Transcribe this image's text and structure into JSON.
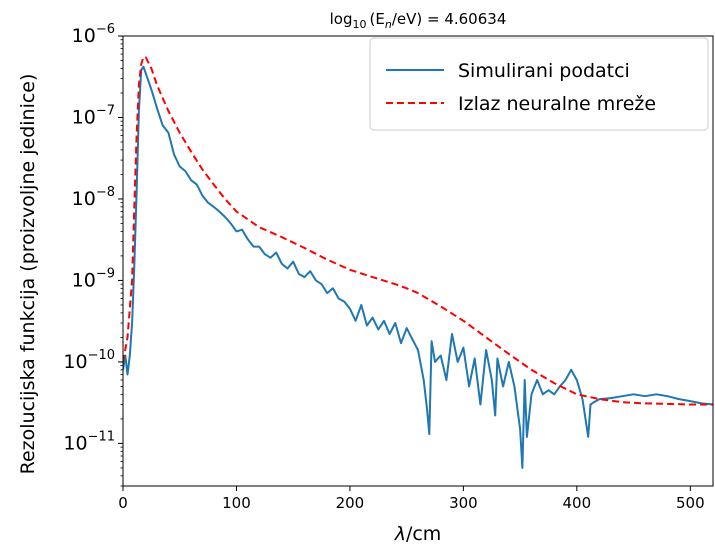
{
  "chart_data": {
    "type": "line",
    "title": {
      "prefix": "log",
      "subscript": "10",
      "middle": "(E",
      "subscript2": "n",
      "suffix": "/eV) = 4.60634"
    },
    "xlabel": {
      "symbol": "λ",
      "unit": "/cm"
    },
    "ylabel": "Rezolucijska funkcija (proizvoljne jedinice)",
    "xlim": [
      0,
      520
    ],
    "ylim": [
      3e-12,
      1e-06
    ],
    "yscale": "log",
    "x_ticks": [
      0,
      100,
      200,
      300,
      400,
      500
    ],
    "y_ticks": [
      {
        "base": "10",
        "exp": "−6",
        "value": 1e-06
      },
      {
        "base": "10",
        "exp": "−7",
        "value": 1e-07
      },
      {
        "base": "10",
        "exp": "−8",
        "value": 1e-08
      },
      {
        "base": "10",
        "exp": "−9",
        "value": 1e-09
      },
      {
        "base": "10",
        "exp": "−10",
        "value": 1e-10
      },
      {
        "base": "10",
        "exp": "−11",
        "value": 1e-11
      }
    ],
    "grid": false,
    "legend_position": "top-right",
    "series": [
      {
        "name": "Simulirani podatci",
        "color": "#1f77b4",
        "style": "solid",
        "x": [
          0,
          2,
          4,
          6,
          8,
          10,
          12,
          14,
          16,
          18,
          20,
          25,
          30,
          35,
          40,
          45,
          50,
          55,
          60,
          65,
          70,
          75,
          80,
          85,
          90,
          95,
          100,
          105,
          110,
          115,
          120,
          125,
          130,
          135,
          140,
          145,
          150,
          155,
          160,
          165,
          170,
          175,
          180,
          185,
          190,
          195,
          200,
          205,
          210,
          215,
          220,
          225,
          230,
          235,
          240,
          245,
          250,
          255,
          260,
          265,
          268,
          270,
          272,
          275,
          280,
          285,
          290,
          295,
          300,
          305,
          310,
          315,
          320,
          325,
          328,
          330,
          332,
          335,
          340,
          345,
          350,
          352,
          354,
          356,
          360,
          365,
          370,
          375,
          380,
          385,
          390,
          395,
          400,
          405,
          410,
          412,
          415,
          420,
          430,
          440,
          450,
          460,
          470,
          480,
          490,
          500,
          510,
          520
        ],
        "y": [
          8e-11,
          1.2e-10,
          7e-11,
          1.2e-10,
          3e-10,
          1.5e-09,
          1.2e-08,
          1.2e-07,
          3.8e-07,
          4.2e-07,
          3.5e-07,
          2.2e-07,
          1.3e-07,
          8e-08,
          6.5e-08,
          3.5e-08,
          2.5e-08,
          2.2e-08,
          1.7e-08,
          1.5e-08,
          1.1e-08,
          9e-09,
          8e-09,
          7e-09,
          6e-09,
          5e-09,
          4e-09,
          4.2e-09,
          3.2e-09,
          2.6e-09,
          2.6e-09,
          2.1e-09,
          1.9e-09,
          2.2e-09,
          1.6e-09,
          1.4e-09,
          1.7e-09,
          1.2e-09,
          1.1e-09,
          1.3e-09,
          1e-09,
          9e-10,
          7e-10,
          8e-10,
          6e-10,
          5.5e-10,
          4.5e-10,
          3.2e-10,
          5e-10,
          2.8e-10,
          3.5e-10,
          2.5e-10,
          3.2e-10,
          2.2e-10,
          3e-10,
          1.7e-10,
          2.6e-10,
          1.9e-10,
          1.4e-10,
          6e-11,
          2.6e-11,
          1.3e-11,
          1.8e-10,
          1e-10,
          1.2e-10,
          6e-11,
          2.2e-10,
          1e-10,
          1.5e-10,
          5e-11,
          1.1e-10,
          3e-11,
          1.4e-10,
          6e-11,
          2.2e-11,
          1.1e-10,
          8e-11,
          5e-11,
          1e-10,
          5e-11,
          1.5e-11,
          5e-12,
          6e-11,
          1.2e-11,
          4e-11,
          6e-11,
          4e-11,
          4.5e-11,
          4e-11,
          5e-11,
          6e-11,
          8e-11,
          6e-11,
          3.5e-11,
          1.2e-11,
          3e-11,
          3.2e-11,
          3.5e-11,
          3.6e-11,
          3.8e-11,
          4e-11,
          3.8e-11,
          4e-11,
          3.8e-11,
          3.5e-11,
          3.3e-11,
          3.1e-11,
          3e-11
        ]
      },
      {
        "name": "Izlaz neuralne mreže",
        "color": "#ff0000",
        "style": "dashed",
        "x": [
          0,
          4,
          8,
          10,
          12,
          14,
          16,
          18,
          20,
          25,
          30,
          40,
          50,
          60,
          70,
          80,
          90,
          100,
          120,
          140,
          160,
          180,
          200,
          220,
          240,
          250,
          260,
          280,
          300,
          320,
          340,
          360,
          380,
          400,
          420,
          440,
          460,
          480,
          500,
          520
        ],
        "y": [
          1e-10,
          2e-10,
          1e-09,
          8e-09,
          6e-08,
          2.5e-07,
          4.5e-07,
          5.5e-07,
          5.5e-07,
          4e-07,
          2.5e-07,
          1.2e-07,
          6.5e-08,
          3.8e-08,
          2.3e-08,
          1.5e-08,
          1e-08,
          7e-09,
          4.5e-09,
          3.4e-09,
          2.5e-09,
          1.8e-09,
          1.35e-09,
          1.1e-09,
          9e-10,
          8e-10,
          7e-10,
          4.8e-10,
          3.2e-10,
          2e-10,
          1.25e-10,
          8e-11,
          5.5e-11,
          4e-11,
          3.5e-11,
          3.2e-11,
          3.1e-11,
          3.05e-11,
          3e-11,
          3e-11
        ]
      }
    ]
  }
}
